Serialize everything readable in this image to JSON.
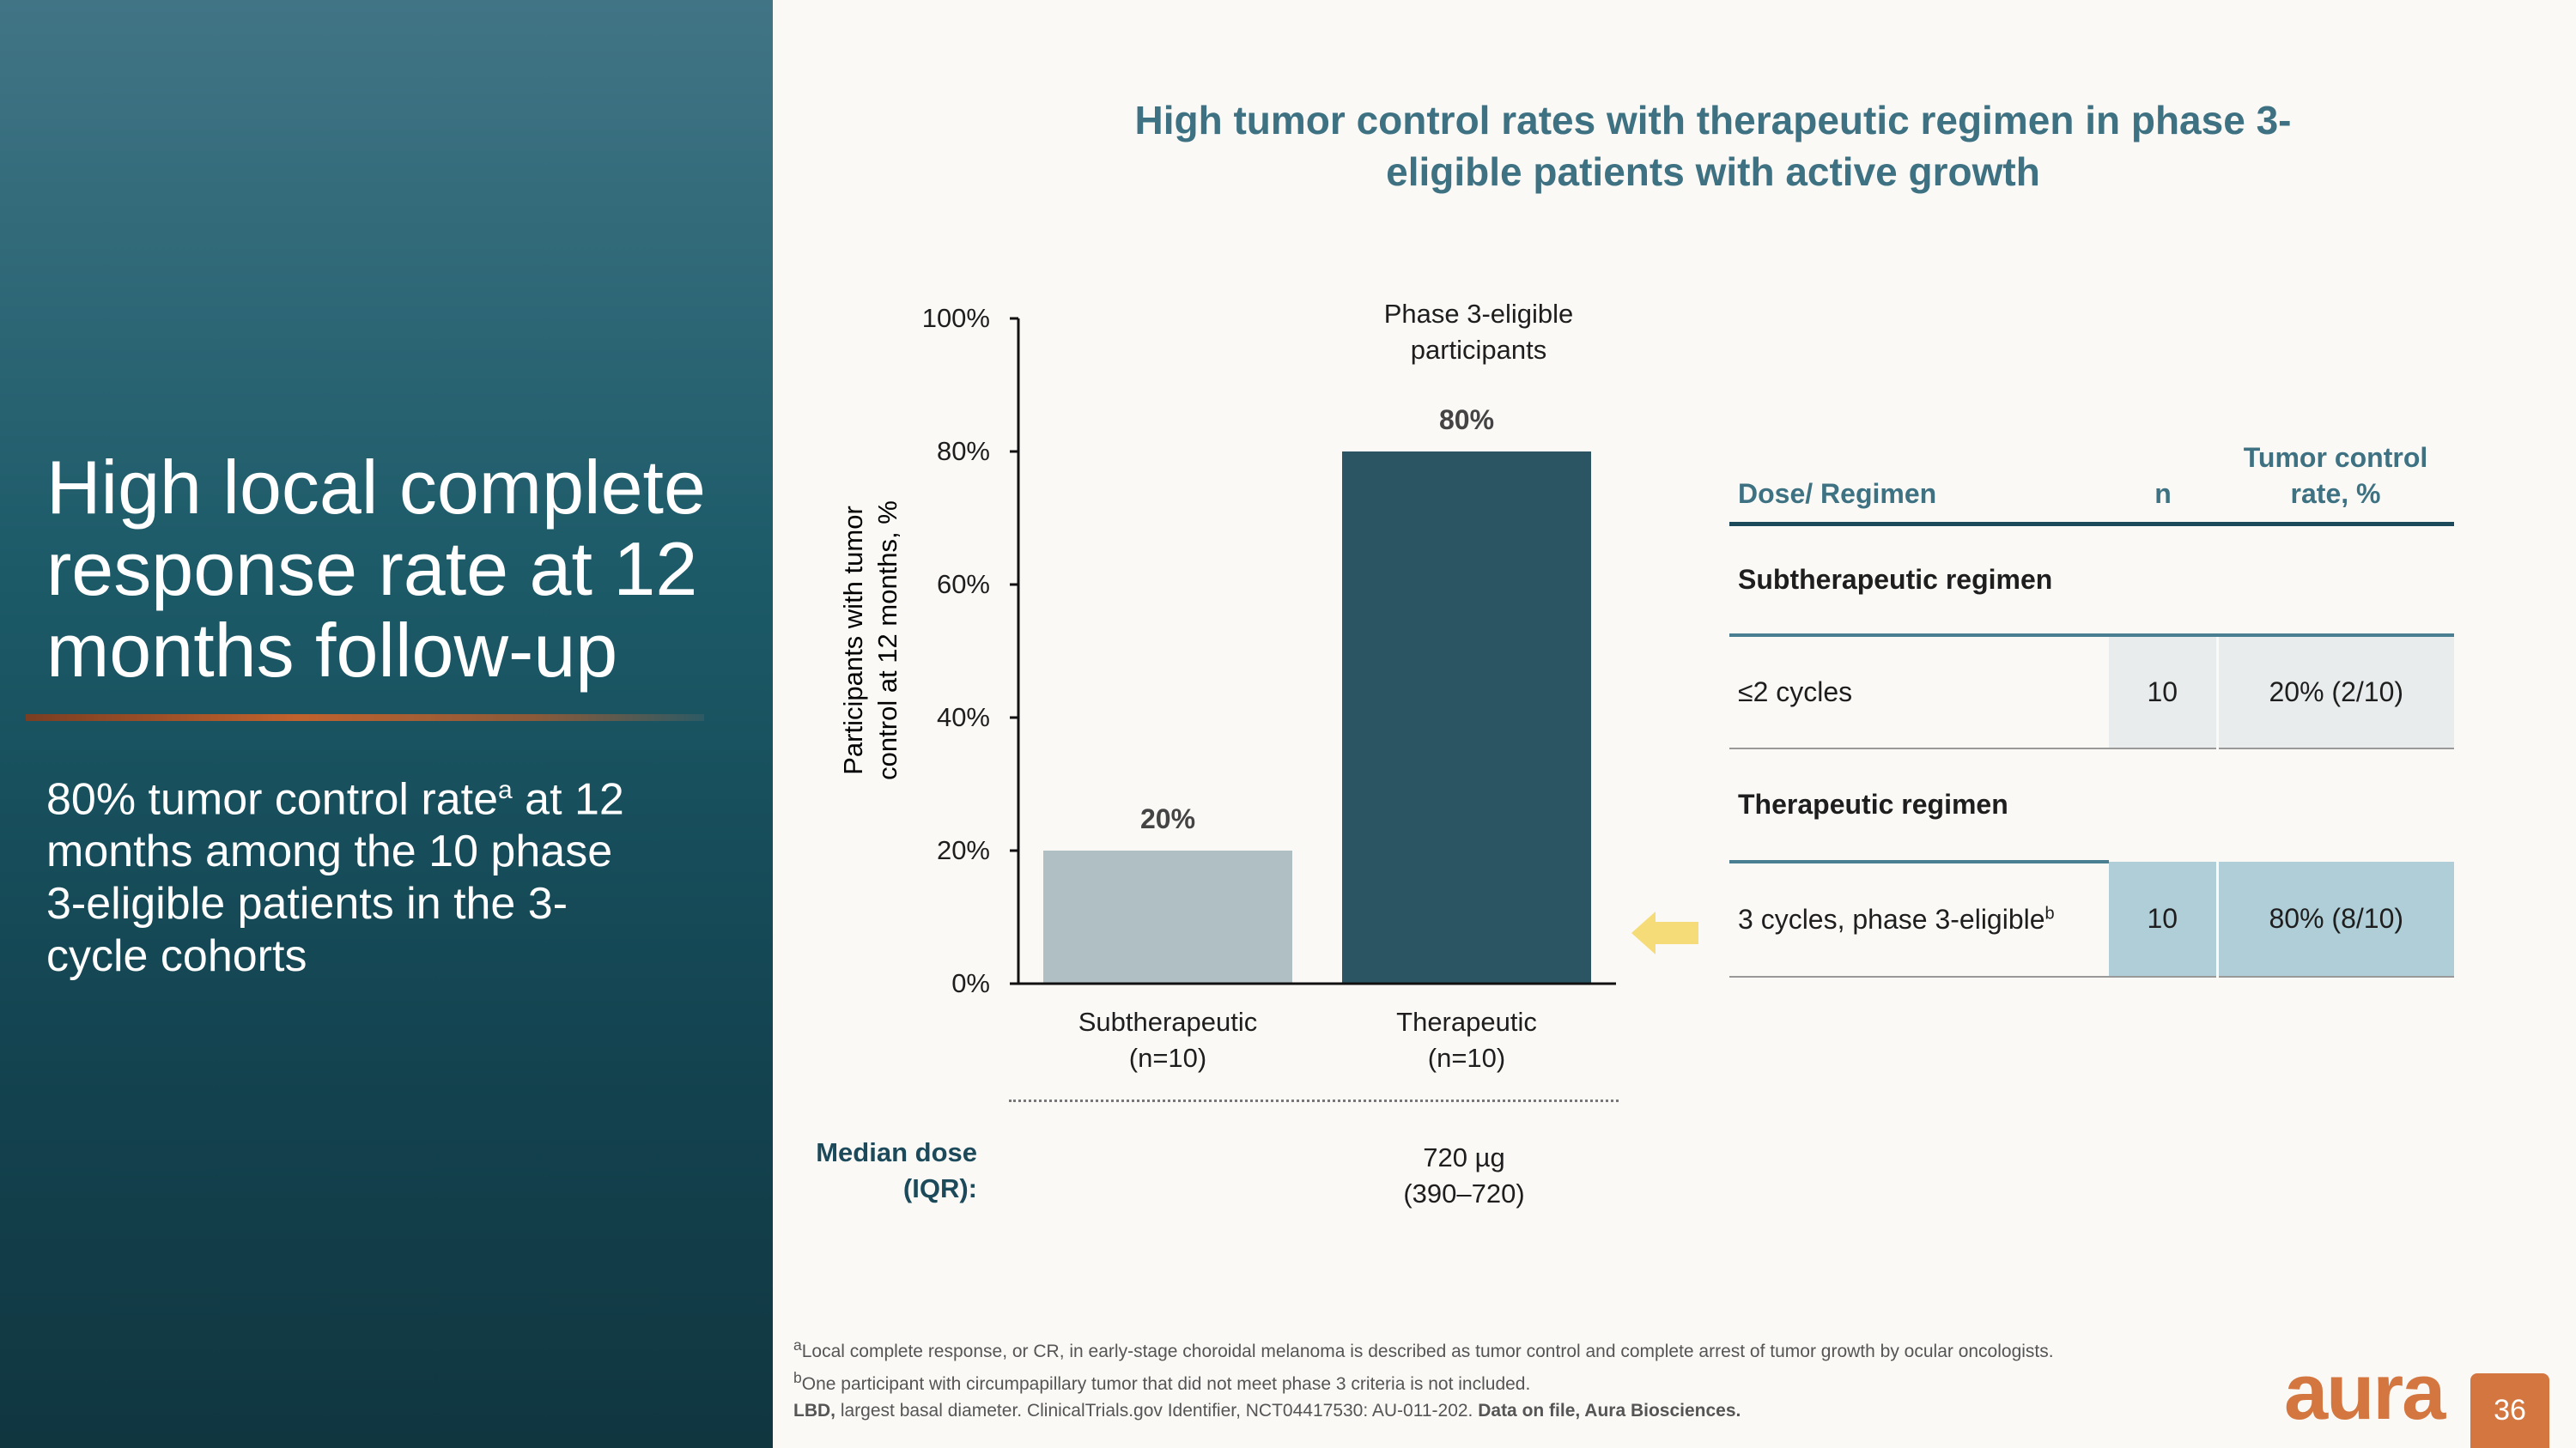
{
  "left": {
    "title": "High local complete response rate at 12 months follow-up",
    "subtitle_pre": "80% tumor control rate",
    "subtitle_sup": "a",
    "subtitle_post": " at 12 months among the 10 phase 3-eligible patients in the 3-cycle cohorts"
  },
  "chart_title": "High tumor control rates with therapeutic regimen in phase 3-eligible patients with active growth",
  "chart_data": {
    "type": "bar",
    "title": "",
    "ylabel": "Participants with tumor control at 12 months, %",
    "ylim": [
      0,
      100
    ],
    "yticks": [
      "0%",
      "20%",
      "40%",
      "60%",
      "80%",
      "100%"
    ],
    "categories": [
      "Subtherapeutic (n=10)",
      "Therapeutic (n=10)"
    ],
    "category_lines": [
      [
        "Subtherapeutic",
        "(n=10)"
      ],
      [
        "Therapeutic",
        "(n=10)"
      ]
    ],
    "values": [
      20,
      80
    ],
    "data_labels": [
      "20%",
      "80%"
    ],
    "colors": [
      "#b0bfc4",
      "#2c5563"
    ],
    "annotation": [
      "Phase 3-eligible",
      "participants"
    ]
  },
  "median_dose": {
    "label_lines": [
      "Median dose",
      "(IQR):"
    ],
    "value_lines": [
      "720 µg",
      "(390–720)"
    ]
  },
  "table": {
    "headers": {
      "regimen": "Dose/ Regimen",
      "n": "n",
      "rate_lines": [
        "Tumor control",
        "rate, %"
      ]
    },
    "groups": [
      {
        "label": "Subtherapeutic regimen",
        "row": {
          "regimen": "≤2 cycles",
          "sup": "",
          "n": "10",
          "rate": "20% (2/10)"
        }
      },
      {
        "label": "Therapeutic regimen",
        "row": {
          "regimen": "3 cycles, phase 3-eligible",
          "sup": "b",
          "n": "10",
          "rate": "80% (8/10)"
        }
      }
    ],
    "highlight_color": "#b0ced8",
    "arrow_color": "#f5dc78"
  },
  "footnotes": {
    "a_sup": "a",
    "a": "Local complete response, or CR, in early-stage choroidal melanoma is described as tumor control and complete arrest of tumor growth by ocular oncologists.",
    "b_sup": "b",
    "b": "One participant with circumpapillary tumor that did not meet phase 3 criteria is not included.",
    "lbd_bold": "LBD,",
    "lbd": " largest basal diameter. ClinicalTrials.gov Identifier, NCT04417530: AU-011-202. ",
    "datafile": "Data on file, Aura Biosciences."
  },
  "logo": "aura",
  "page_number": "36"
}
